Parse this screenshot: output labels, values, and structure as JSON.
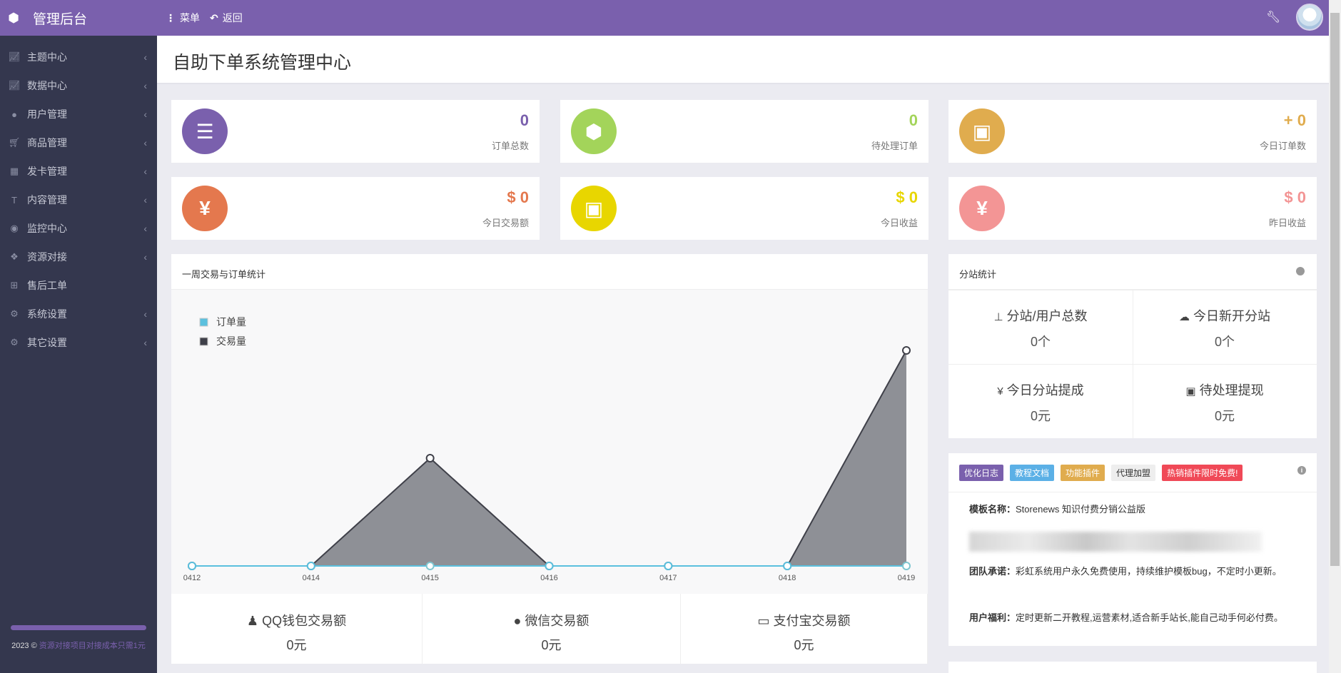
{
  "header": {
    "brand": "管理后台",
    "menu_label": "菜单",
    "back_label": "返回"
  },
  "sidebar": {
    "items": [
      {
        "label": "主题中心",
        "icon": "chart-line-icon",
        "has_children": true
      },
      {
        "label": "数据中心",
        "icon": "chart-line-icon",
        "has_children": true
      },
      {
        "label": "用户管理",
        "icon": "user-icon",
        "has_children": true
      },
      {
        "label": "商品管理",
        "icon": "cart-icon",
        "has_children": true
      },
      {
        "label": "发卡管理",
        "icon": "grid-icon",
        "has_children": true
      },
      {
        "label": "内容管理",
        "icon": "text-icon",
        "has_children": true
      },
      {
        "label": "监控中心",
        "icon": "target-icon",
        "has_children": true
      },
      {
        "label": "资源对接",
        "icon": "cubes-icon",
        "has_children": true
      },
      {
        "label": "售后工单",
        "icon": "plus-square-icon",
        "has_children": false
      },
      {
        "label": "系统设置",
        "icon": "gear-icon",
        "has_children": true
      },
      {
        "label": "其它设置",
        "icon": "gears-icon",
        "has_children": true
      }
    ],
    "footer_prefix": "2023 ©",
    "footer_link": "资源对接项目对接成本只需1元"
  },
  "page_title": "自助下单系统管理中心",
  "stats": [
    {
      "value": "0",
      "label": "订单总数",
      "color": "#7a60ad",
      "icon": "ordered-list-icon"
    },
    {
      "value": "0",
      "label": "待处理订单",
      "color": "#a3d45a",
      "icon": "hexagon-icon"
    },
    {
      "value": "+ 0",
      "label": "今日订单数",
      "color": "#e0ac4e",
      "icon": "briefcase-icon"
    },
    {
      "value": "$ 0",
      "label": "今日交易额",
      "color": "#e4784e",
      "icon": "yen-icon"
    },
    {
      "value": "$ 0",
      "label": "今日收益",
      "color": "#e8d600",
      "icon": "briefcase-icon"
    },
    {
      "value": "$ 0",
      "label": "昨日收益",
      "color": "#f39595",
      "icon": "yen-icon"
    }
  ],
  "weekly": {
    "title": "一周交易与订单统计",
    "pay": [
      {
        "label": "QQ钱包交易额",
        "value": "0元",
        "icon": "qq-icon"
      },
      {
        "label": "微信交易额",
        "value": "0元",
        "icon": "wechat-icon"
      },
      {
        "label": "支付宝交易额",
        "value": "0元",
        "icon": "credit-card-icon"
      }
    ]
  },
  "chart_data": {
    "type": "area",
    "categories": [
      "0412",
      "0414",
      "0415",
      "0416",
      "0417",
      "0418",
      "0419"
    ],
    "series": [
      {
        "name": "订单量",
        "values": [
          0,
          0,
          0,
          0,
          0,
          0,
          0
        ],
        "color": "#5bc0de"
      },
      {
        "name": "交易量",
        "values": [
          0,
          0,
          1,
          0,
          0,
          0,
          2
        ],
        "color": "#3f4049"
      }
    ],
    "legend": "top-left",
    "grid": false
  },
  "branch": {
    "title": "分站统计",
    "items": [
      {
        "label": "分站/用户总数",
        "value": "0个",
        "icon": "sitemap-icon"
      },
      {
        "label": "今日新开分站",
        "value": "0个",
        "icon": "cloud-icon"
      },
      {
        "label": "今日分站提成",
        "value": "0元",
        "icon": "yen-icon"
      },
      {
        "label": "待处理提现",
        "value": "0元",
        "icon": "money-icon"
      }
    ]
  },
  "info": {
    "badges": [
      {
        "label": "优化日志",
        "color": "#7a60ad",
        "text": "#fff"
      },
      {
        "label": "教程文档",
        "color": "#5bb0e6",
        "text": "#fff"
      },
      {
        "label": "功能插件",
        "color": "#e0ac4e",
        "text": "#fff"
      },
      {
        "label": "代理加盟",
        "color": "#eeeeee",
        "text": "#333"
      },
      {
        "label": "热销插件限时免费!",
        "color": "#f04957",
        "text": "#fff"
      }
    ],
    "template_label": "模板名称：",
    "template_value": "Storenews 知识付费分销公益版",
    "promise_label": "团队承诺：",
    "promise_value": "彩虹系统用户永久免费使用，持续维护模板bug，不定时小更新。",
    "benefit_label": "用户福利：",
    "benefit_value": "定时更新二开教程,运营素材,适合新手站长,能自己动手何必付费。"
  }
}
